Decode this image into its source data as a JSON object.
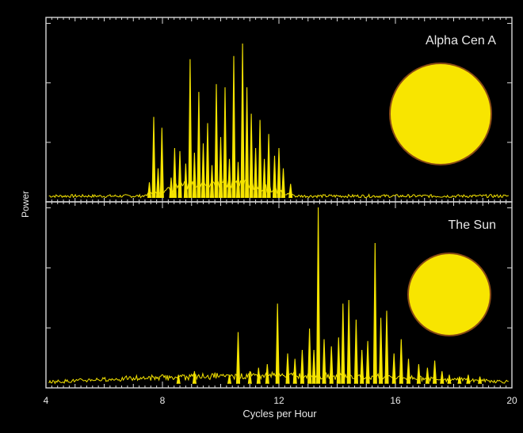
{
  "chart_data": [
    {
      "type": "line",
      "panel_label": "Alpha Cen A",
      "xlim": [
        4,
        20
      ],
      "ylim": [
        0,
        1.0
      ],
      "series_color": "#f5e400",
      "disk": {
        "color": "#f8e500",
        "rim_color": "#8a4b14"
      },
      "peaks": [
        {
          "x": 7.55,
          "y": 0.11
        },
        {
          "x": 7.7,
          "y": 0.53
        },
        {
          "x": 7.85,
          "y": 0.2
        },
        {
          "x": 7.98,
          "y": 0.46
        },
        {
          "x": 8.3,
          "y": 0.14
        },
        {
          "x": 8.42,
          "y": 0.33
        },
        {
          "x": 8.6,
          "y": 0.31
        },
        {
          "x": 8.8,
          "y": 0.23
        },
        {
          "x": 8.95,
          "y": 0.9
        },
        {
          "x": 9.1,
          "y": 0.3
        },
        {
          "x": 9.25,
          "y": 0.69
        },
        {
          "x": 9.4,
          "y": 0.36
        },
        {
          "x": 9.55,
          "y": 0.49
        },
        {
          "x": 9.7,
          "y": 0.22
        },
        {
          "x": 9.85,
          "y": 0.74
        },
        {
          "x": 10.0,
          "y": 0.4
        },
        {
          "x": 10.15,
          "y": 0.72
        },
        {
          "x": 10.3,
          "y": 0.26
        },
        {
          "x": 10.45,
          "y": 0.92
        },
        {
          "x": 10.6,
          "y": 0.24
        },
        {
          "x": 10.75,
          "y": 1.0
        },
        {
          "x": 10.9,
          "y": 0.72
        },
        {
          "x": 11.05,
          "y": 0.55
        },
        {
          "x": 11.2,
          "y": 0.33
        },
        {
          "x": 11.35,
          "y": 0.51
        },
        {
          "x": 11.5,
          "y": 0.26
        },
        {
          "x": 11.65,
          "y": 0.42
        },
        {
          "x": 11.85,
          "y": 0.28
        },
        {
          "x": 12.0,
          "y": 0.33
        },
        {
          "x": 12.15,
          "y": 0.2
        },
        {
          "x": 12.4,
          "y": 0.1
        }
      ],
      "base_range": [
        7.3,
        12.6
      ],
      "base_height": 0.1
    },
    {
      "type": "line",
      "panel_label": "The Sun",
      "xlim": [
        4,
        20
      ],
      "ylim": [
        0,
        1.0
      ],
      "series_color": "#f5e400",
      "disk": {
        "color": "#f8e500",
        "rim_color": "#8a4b14"
      },
      "peaks": [
        {
          "x": 8.55,
          "y": 0.06
        },
        {
          "x": 9.1,
          "y": 0.08
        },
        {
          "x": 10.3,
          "y": 0.06
        },
        {
          "x": 10.6,
          "y": 0.3
        },
        {
          "x": 11.0,
          "y": 0.08
        },
        {
          "x": 11.3,
          "y": 0.1
        },
        {
          "x": 11.6,
          "y": 0.12
        },
        {
          "x": 11.95,
          "y": 0.46
        },
        {
          "x": 12.3,
          "y": 0.18
        },
        {
          "x": 12.55,
          "y": 0.15
        },
        {
          "x": 12.8,
          "y": 0.2
        },
        {
          "x": 13.05,
          "y": 0.32
        },
        {
          "x": 13.2,
          "y": 0.2
        },
        {
          "x": 13.35,
          "y": 1.0
        },
        {
          "x": 13.55,
          "y": 0.26
        },
        {
          "x": 13.8,
          "y": 0.22
        },
        {
          "x": 14.05,
          "y": 0.27
        },
        {
          "x": 14.2,
          "y": 0.46
        },
        {
          "x": 14.4,
          "y": 0.48
        },
        {
          "x": 14.65,
          "y": 0.37
        },
        {
          "x": 14.85,
          "y": 0.2
        },
        {
          "x": 15.05,
          "y": 0.25
        },
        {
          "x": 15.3,
          "y": 0.8
        },
        {
          "x": 15.5,
          "y": 0.38
        },
        {
          "x": 15.7,
          "y": 0.42
        },
        {
          "x": 15.95,
          "y": 0.18
        },
        {
          "x": 16.2,
          "y": 0.26
        },
        {
          "x": 16.45,
          "y": 0.15
        },
        {
          "x": 16.8,
          "y": 0.12
        },
        {
          "x": 17.1,
          "y": 0.1
        },
        {
          "x": 17.35,
          "y": 0.14
        },
        {
          "x": 17.6,
          "y": 0.08
        },
        {
          "x": 17.85,
          "y": 0.06
        },
        {
          "x": 18.2,
          "y": 0.05
        },
        {
          "x": 18.5,
          "y": 0.06
        },
        {
          "x": 18.9,
          "y": 0.05
        }
      ],
      "base_range": [
        4.3,
        19.8
      ],
      "base_height": 0.04
    }
  ],
  "axes": {
    "xlabel": "Cycles per Hour",
    "ylabel": "Power",
    "xticks": [
      "4",
      "8",
      "12",
      "16",
      "20"
    ],
    "xtick_values": [
      4,
      8,
      12,
      16,
      20
    ]
  },
  "colors": {
    "background": "#000000",
    "axis": "#d8d8d8",
    "text": "#e8e8e8"
  }
}
